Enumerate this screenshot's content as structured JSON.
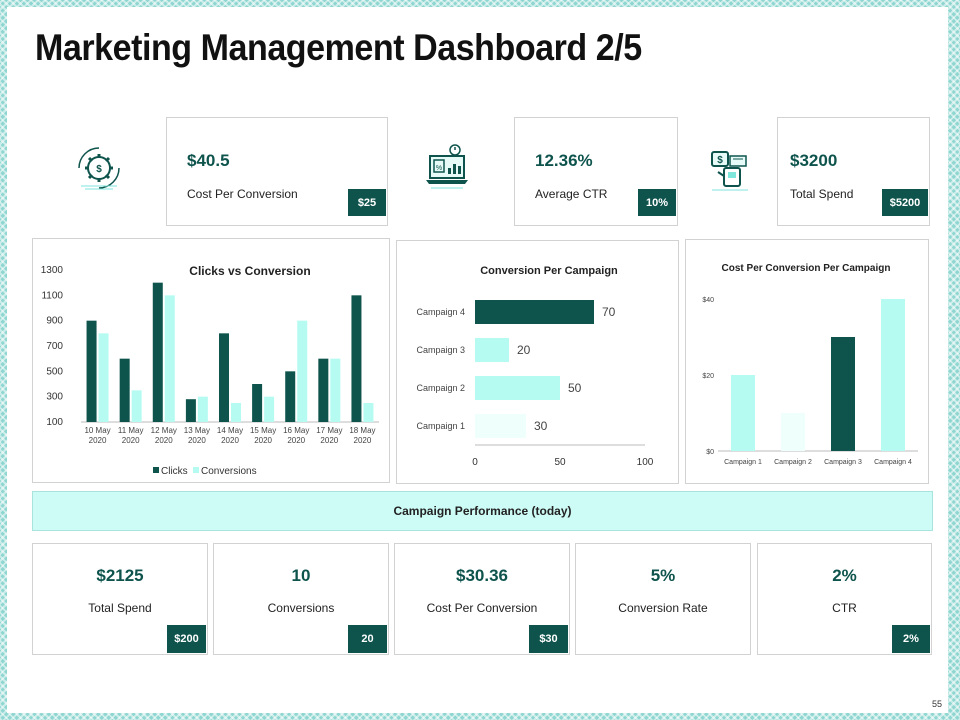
{
  "title": "Marketing Management Dashboard 2/5",
  "page_number": "55",
  "colors": {
    "dark": "#0e544d",
    "light": "#b6fbf2",
    "lighter": "#eefffc",
    "banner": "#cdfbf6"
  },
  "top_kpis": [
    {
      "value": "$40.5",
      "label": "Cost Per Conversion",
      "badge": "$25",
      "icon": "gear-dollar-icon"
    },
    {
      "value": "12.36%",
      "label": "Average CTR",
      "badge": "10%",
      "icon": "laptop-chart-icon"
    },
    {
      "value": "$3200",
      "label": "Total Spend",
      "badge": "$5200",
      "icon": "money-transfer-icon"
    }
  ],
  "banner": "Campaign Performance (today)",
  "bottom_kpis": [
    {
      "value": "$2125",
      "label": "Total Spend",
      "badge": "$200"
    },
    {
      "value": "10",
      "label": "Conversions",
      "badge": "20"
    },
    {
      "value": "$30.36",
      "label": "Cost Per Conversion",
      "badge": "$30"
    },
    {
      "value": "5%",
      "label": "Conversion Rate",
      "badge": ""
    },
    {
      "value": "2%",
      "label": "CTR",
      "badge": "2%"
    }
  ],
  "chart_data": [
    {
      "type": "bar",
      "title": "Clicks vs Conversion",
      "categories": [
        "10 May 2020",
        "11 May 2020",
        "12 May 2020",
        "13 May 2020",
        "14 May 2020",
        "15 May 2020",
        "16 May 2020",
        "17 May 2020",
        "18 May 2020"
      ],
      "series": [
        {
          "name": "Clicks",
          "values": [
            900,
            600,
            1200,
            280,
            800,
            400,
            500,
            600,
            1100
          ]
        },
        {
          "name": "Conversions",
          "values": [
            800,
            350,
            1100,
            300,
            250,
            300,
            900,
            600,
            250
          ]
        }
      ],
      "yticks": [
        "1300",
        "1100",
        "900",
        "700",
        "500",
        "300",
        "100"
      ],
      "ylim": [
        100,
        1300
      ],
      "legend": "bottom"
    },
    {
      "type": "bar",
      "orientation": "horizontal",
      "title": "Conversion Per Campaign",
      "categories": [
        "Campaign 4",
        "Campaign 3",
        "Campaign 2",
        "Campaign 1"
      ],
      "values": [
        70,
        20,
        50,
        30
      ],
      "value_labels": [
        "70",
        "20",
        "50",
        "30"
      ],
      "xticks": [
        "0",
        "50",
        "100"
      ],
      "xlim": [
        0,
        100
      ]
    },
    {
      "type": "bar",
      "title": "Cost Per Conversion Per Campaign",
      "categories": [
        "Campaign 1",
        "Campaign 2",
        "Campaign 3",
        "Campaign 4"
      ],
      "values": [
        20,
        10,
        30,
        40
      ],
      "yticks": [
        "$40",
        "$20",
        "$0"
      ],
      "ylim": [
        0,
        40
      ]
    }
  ]
}
